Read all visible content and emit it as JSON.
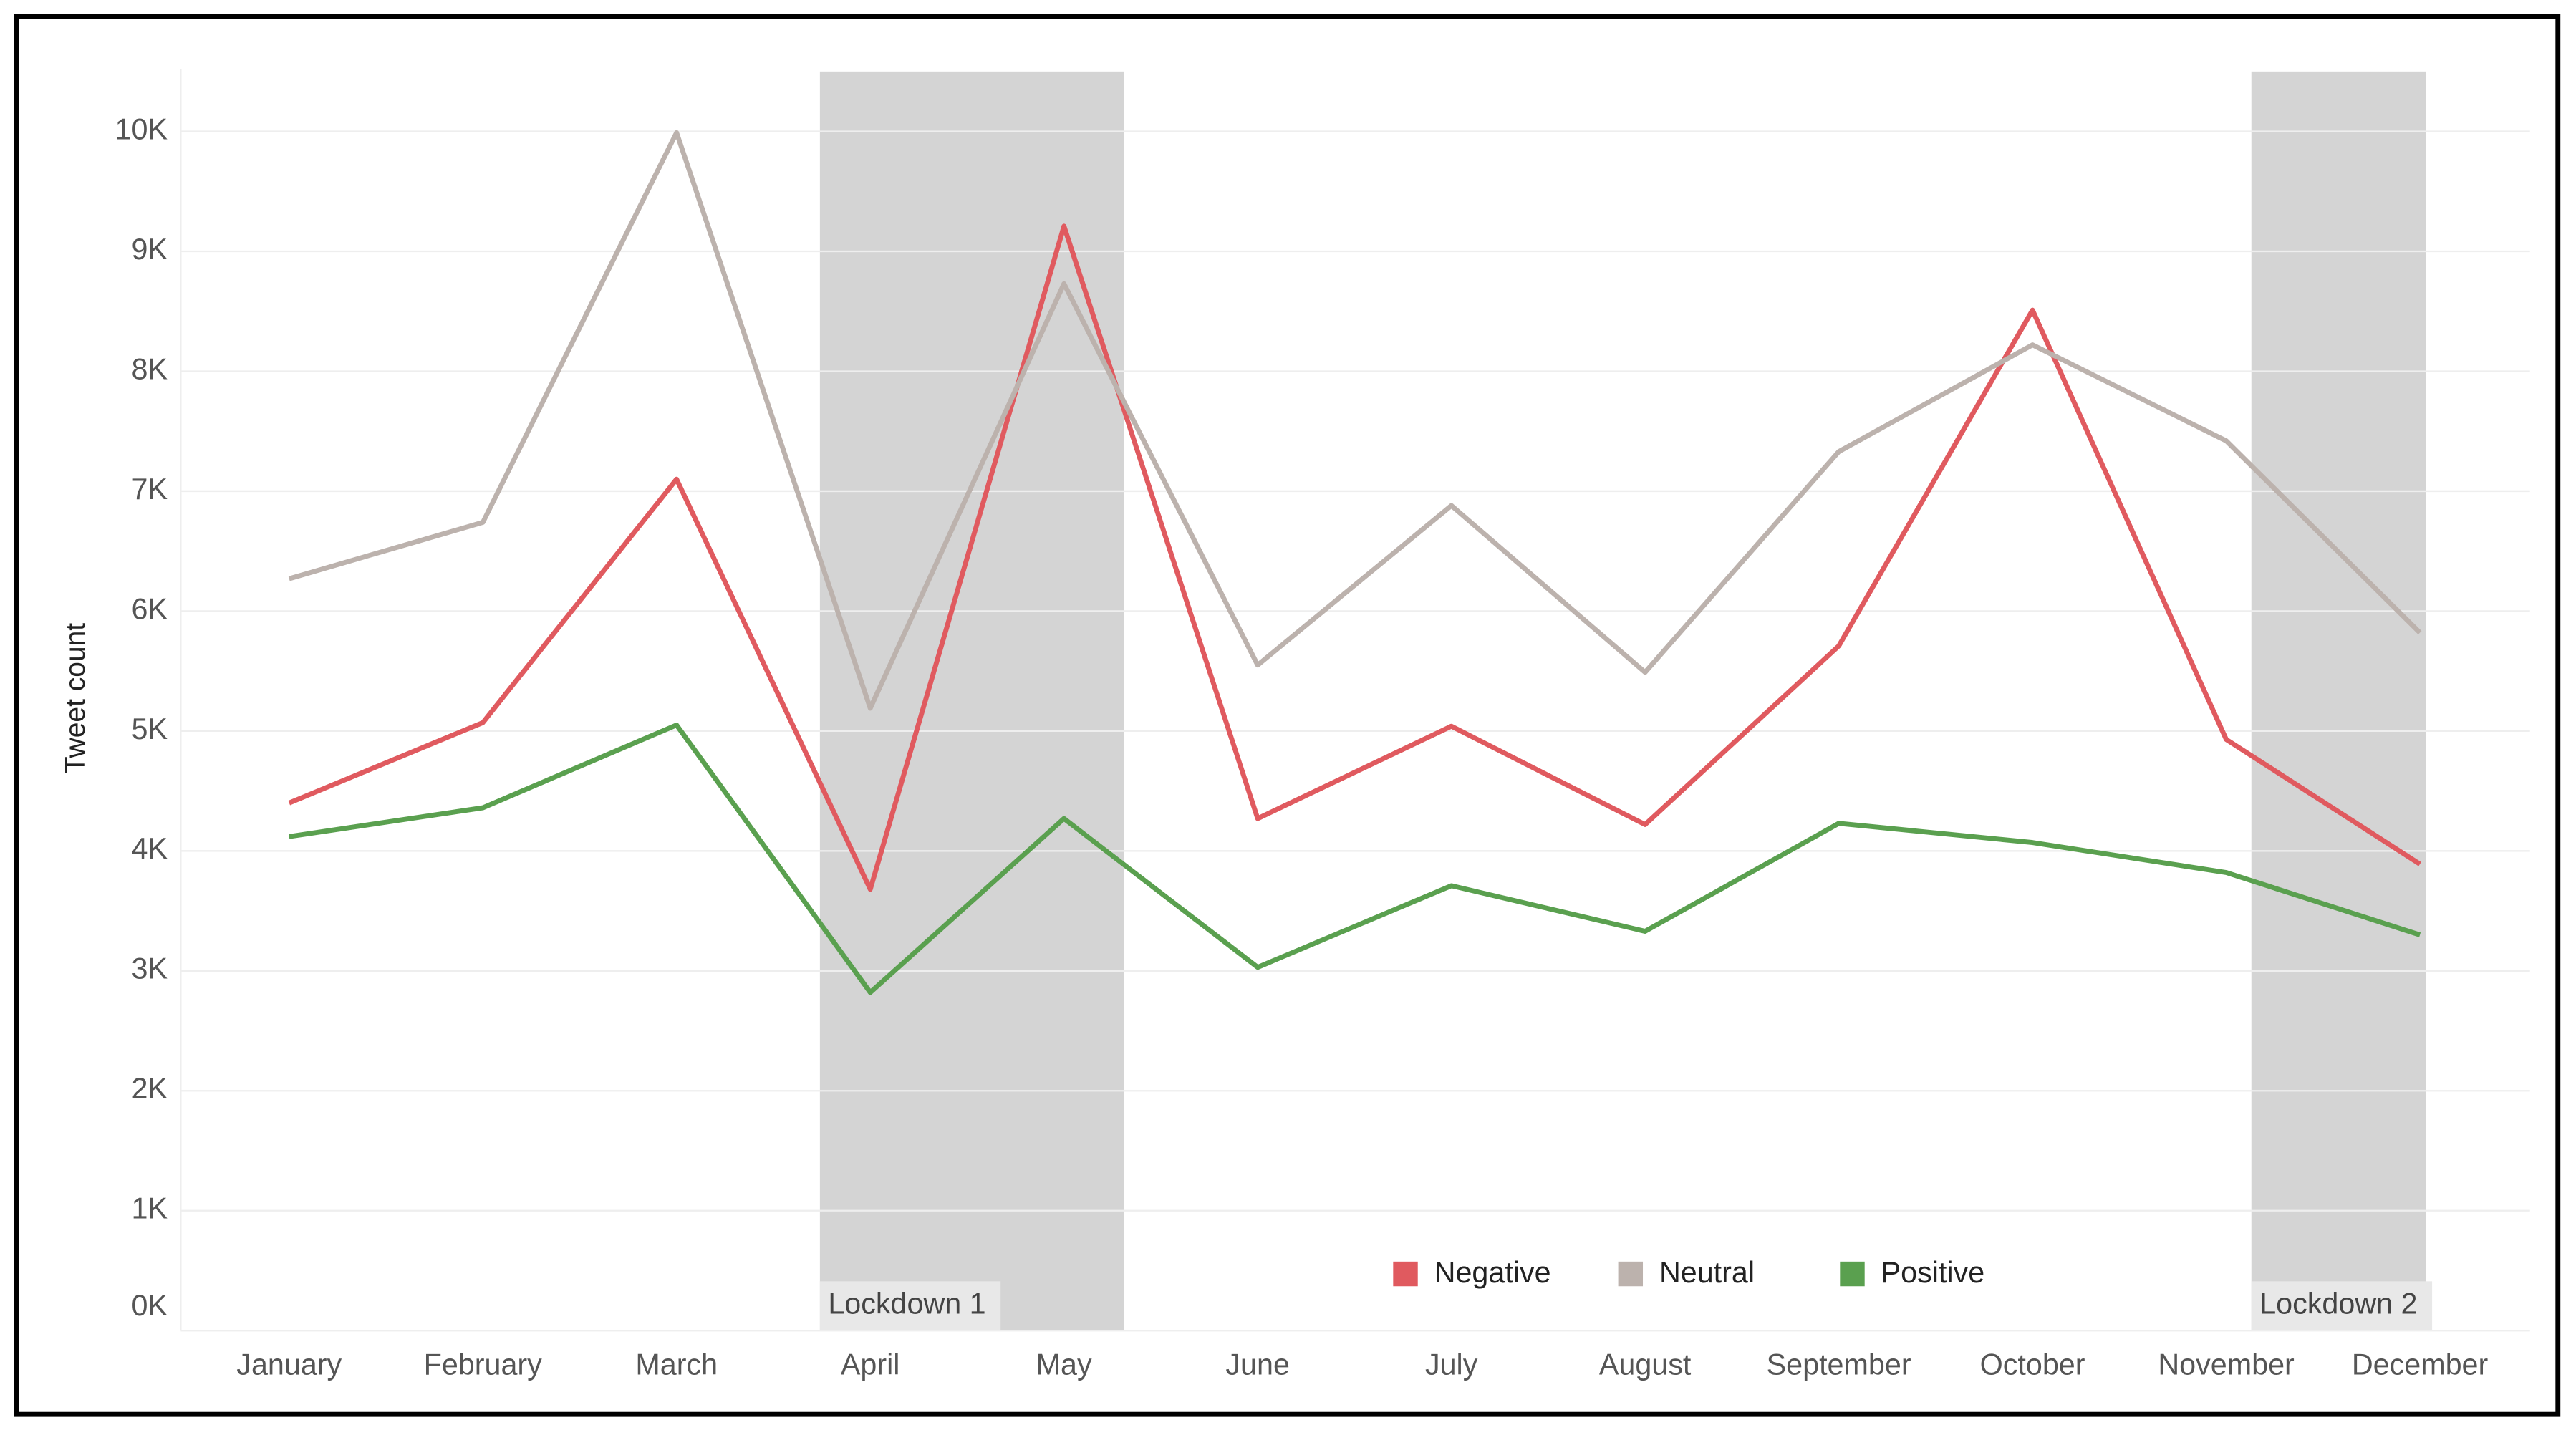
{
  "chart_data": {
    "type": "line",
    "y_label": "Tweet count",
    "categories": [
      "January",
      "February",
      "March",
      "April",
      "May",
      "June",
      "July",
      "August",
      "September",
      "October",
      "November",
      "December"
    ],
    "series": [
      {
        "name": "Negative",
        "color": "#e05a5f",
        "values": [
          4400,
          5070,
          7100,
          3680,
          9210,
          4270,
          5040,
          4220,
          5710,
          8510,
          4930,
          3890
        ]
      },
      {
        "name": "Neutral",
        "color": "#bcb2ad",
        "values": [
          6270,
          6740,
          9990,
          5190,
          8730,
          5550,
          6880,
          5490,
          7330,
          8220,
          7420,
          5820
        ]
      },
      {
        "name": "Positive",
        "color": "#5aa04f",
        "values": [
          4120,
          4360,
          5050,
          2820,
          4270,
          3030,
          3710,
          3330,
          4230,
          4070,
          3820,
          3300
        ]
      }
    ],
    "ylim": [
      0,
      10500
    ],
    "yticks": [
      {
        "value": 0,
        "label": "0K"
      },
      {
        "value": 1000,
        "label": "1K"
      },
      {
        "value": 2000,
        "label": "2K"
      },
      {
        "value": 3000,
        "label": "3K"
      },
      {
        "value": 4000,
        "label": "4K"
      },
      {
        "value": 5000,
        "label": "5K"
      },
      {
        "value": 6000,
        "label": "6K"
      },
      {
        "value": 7000,
        "label": "7K"
      },
      {
        "value": 8000,
        "label": "8K"
      },
      {
        "value": 9000,
        "label": "9K"
      },
      {
        "value": 10000,
        "label": "10K"
      }
    ],
    "grid": true,
    "legend": "bottom",
    "shaded_periods": [
      {
        "label": "Lockdown 1",
        "from": "April",
        "to": "May"
      },
      {
        "label": "Lockdown 2",
        "from": "November",
        "to": "December"
      }
    ]
  }
}
